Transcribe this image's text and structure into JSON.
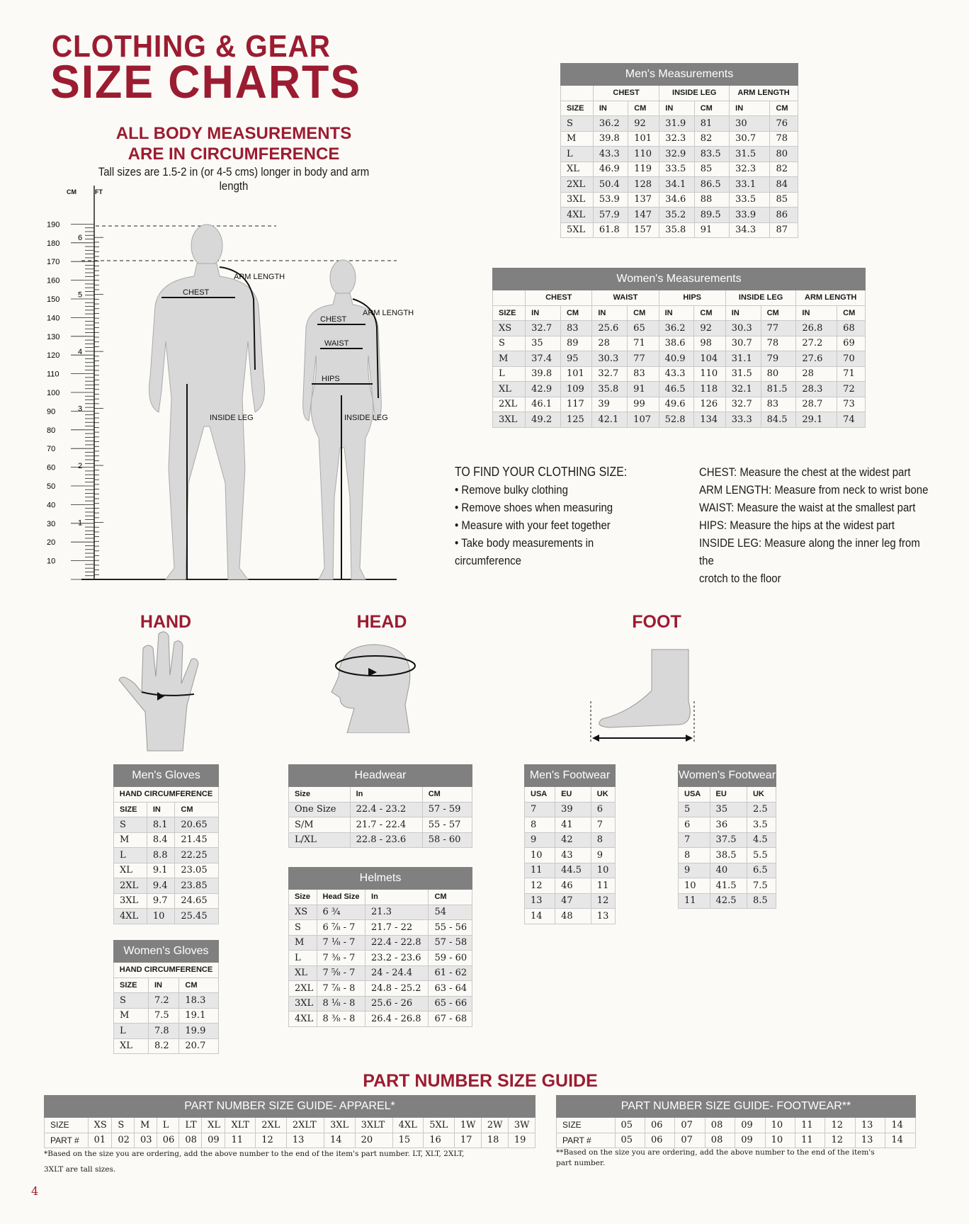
{
  "header": {
    "line1": "CLOTHING & GEAR",
    "line2": "SIZE CHARTS",
    "sub1": "ALL BODY MEASUREMENTS",
    "sub2": "ARE IN CIRCUMFERENCE",
    "tall_note": "Tall sizes are 1.5-2 in (or 4-5 cms) longer in body and arm  length"
  },
  "colors": {
    "brand_red": "#9b1c31",
    "header_gray": "#808080",
    "shade": "#e7e7e7"
  },
  "figure": {
    "cm_unit": "CM",
    "ft_unit": "FT",
    "cm_labels": [
      "10",
      "20",
      "30",
      "40",
      "50",
      "60",
      "70",
      "80",
      "90",
      "100",
      "110",
      "120",
      "130",
      "140",
      "150",
      "160",
      "170",
      "180",
      "190"
    ],
    "ft_labels": [
      "1",
      "2",
      "3",
      "4",
      "5",
      "6"
    ],
    "men_labels": {
      "arm": "ARM LENGTH",
      "chest": "CHEST",
      "leg": "INSIDE LEG"
    },
    "women_labels": {
      "arm": "ARM LENGTH",
      "chest": "CHEST",
      "waist": "WAIST",
      "hips": "HIPS",
      "leg": "INSIDE LEG"
    }
  },
  "tables": {
    "mens": {
      "title": "Men's Measurements",
      "groups": [
        {
          "label": "",
          "span": 1
        },
        {
          "label": "CHEST",
          "span": 2
        },
        {
          "label": "INSIDE LEG",
          "span": 2
        },
        {
          "label": "ARM LENGTH",
          "span": 2
        }
      ],
      "columns": [
        "SIZE",
        "IN",
        "CM",
        "IN",
        "CM",
        "IN",
        "CM"
      ],
      "rows": [
        [
          "S",
          "36.2",
          "92",
          "31.9",
          "81",
          "30",
          "76"
        ],
        [
          "M",
          "39.8",
          "101",
          "32.3",
          "82",
          "30.7",
          "78"
        ],
        [
          "L",
          "43.3",
          "110",
          "32.9",
          "83.5",
          "31.5",
          "80"
        ],
        [
          "XL",
          "46.9",
          "119",
          "33.5",
          "85",
          "32.3",
          "82"
        ],
        [
          "2XL",
          "50.4",
          "128",
          "34.1",
          "86.5",
          "33.1",
          "84"
        ],
        [
          "3XL",
          "53.9",
          "137",
          "34.6",
          "88",
          "33.5",
          "85"
        ],
        [
          "4XL",
          "57.9",
          "147",
          "35.2",
          "89.5",
          "33.9",
          "86"
        ],
        [
          "5XL",
          "61.8",
          "157",
          "35.8",
          "91",
          "34.3",
          "87"
        ]
      ]
    },
    "womens": {
      "title": "Women's Measurements",
      "groups": [
        {
          "label": "",
          "span": 1
        },
        {
          "label": "CHEST",
          "span": 2
        },
        {
          "label": "WAIST",
          "span": 2
        },
        {
          "label": "HIPS",
          "span": 2
        },
        {
          "label": "INSIDE LEG",
          "span": 2
        },
        {
          "label": "ARM LENGTH",
          "span": 2
        }
      ],
      "columns": [
        "SIZE",
        "IN",
        "CM",
        "IN",
        "CM",
        "IN",
        "CM",
        "IN",
        "CM",
        "IN",
        "CM"
      ],
      "rows": [
        [
          "XS",
          "32.7",
          "83",
          "25.6",
          "65",
          "36.2",
          "92",
          "30.3",
          "77",
          "26.8",
          "68"
        ],
        [
          "S",
          "35",
          "89",
          "28",
          "71",
          "38.6",
          "98",
          "30.7",
          "78",
          "27.2",
          "69"
        ],
        [
          "M",
          "37.4",
          "95",
          "30.3",
          "77",
          "40.9",
          "104",
          "31.1",
          "79",
          "27.6",
          "70"
        ],
        [
          "L",
          "39.8",
          "101",
          "32.7",
          "83",
          "43.3",
          "110",
          "31.5",
          "80",
          "28",
          "71"
        ],
        [
          "XL",
          "42.9",
          "109",
          "35.8",
          "91",
          "46.5",
          "118",
          "32.1",
          "81.5",
          "28.3",
          "72"
        ],
        [
          "2XL",
          "46.1",
          "117",
          "39",
          "99",
          "49.6",
          "126",
          "32.7",
          "83",
          "28.7",
          "73"
        ],
        [
          "3XL",
          "49.2",
          "125",
          "42.1",
          "107",
          "52.8",
          "134",
          "33.3",
          "84.5",
          "29.1",
          "74"
        ]
      ]
    },
    "mens_gloves": {
      "title": "Men's Gloves",
      "groups": [
        {
          "label": "HAND CIRCUMFERENCE",
          "span": 3
        }
      ],
      "columns": [
        "SIZE",
        "IN",
        "CM"
      ],
      "rows": [
        [
          "S",
          "8.1",
          "20.65"
        ],
        [
          "M",
          "8.4",
          "21.45"
        ],
        [
          "L",
          "8.8",
          "22.25"
        ],
        [
          "XL",
          "9.1",
          "23.05"
        ],
        [
          "2XL",
          "9.4",
          "23.85"
        ],
        [
          "3XL",
          "9.7",
          "24.65"
        ],
        [
          "4XL",
          "10",
          "25.45"
        ]
      ]
    },
    "womens_gloves": {
      "title": "Women's Gloves",
      "groups": [
        {
          "label": "HAND CIRCUMFERENCE",
          "span": 3
        }
      ],
      "columns": [
        "SIZE",
        "IN",
        "CM"
      ],
      "rows": [
        [
          "S",
          "7.2",
          "18.3"
        ],
        [
          "M",
          "7.5",
          "19.1"
        ],
        [
          "L",
          "7.8",
          "19.9"
        ],
        [
          "XL",
          "8.2",
          "20.7"
        ]
      ]
    },
    "headwear": {
      "title": "Headwear",
      "columns": [
        "Size",
        "In",
        "CM"
      ],
      "rows": [
        [
          "One Size",
          "22.4 - 23.2",
          "57 - 59"
        ],
        [
          "S/M",
          "21.7 - 22.4",
          "55 - 57"
        ],
        [
          "L/XL",
          "22.8 - 23.6",
          "58 - 60"
        ]
      ]
    },
    "helmets": {
      "title": "Helmets",
      "columns": [
        "Size",
        "Head Size",
        "In",
        "CM"
      ],
      "rows": [
        [
          "XS",
          "6 ¾",
          "21.3",
          "54"
        ],
        [
          "S",
          "6 ⅞ - 7",
          "21.7 - 22",
          "55 - 56"
        ],
        [
          "M",
          "7 ⅛ - 7",
          "22.4 - 22.8",
          "57 - 58"
        ],
        [
          "L",
          "7 ⅜ - 7",
          "23.2 - 23.6",
          "59 - 60"
        ],
        [
          "XL",
          "7 ⅝ - 7",
          "24 - 24.4",
          "61 - 62"
        ],
        [
          "2XL",
          "7 ⅞ - 8",
          "24.8 - 25.2",
          "63 - 64"
        ],
        [
          "3XL",
          "8 ⅛ - 8",
          "25.6 - 26",
          "65 - 66"
        ],
        [
          "4XL",
          "8 ⅜ - 8",
          "26.4 - 26.8",
          "67 - 68"
        ]
      ]
    },
    "mens_footwear": {
      "title": "Men's Footwear",
      "columns": [
        "USA",
        "EU",
        "UK"
      ],
      "rows": [
        [
          "7",
          "39",
          "6"
        ],
        [
          "8",
          "41",
          "7"
        ],
        [
          "9",
          "42",
          "8"
        ],
        [
          "10",
          "43",
          "9"
        ],
        [
          "11",
          "44.5",
          "10"
        ],
        [
          "12",
          "46",
          "11"
        ],
        [
          "13",
          "47",
          "12"
        ],
        [
          "14",
          "48",
          "13"
        ]
      ]
    },
    "womens_footwear": {
      "title": "Women's Footwear",
      "columns": [
        "USA",
        "EU",
        "UK"
      ],
      "rows": [
        [
          "5",
          "35",
          "2.5"
        ],
        [
          "6",
          "36",
          "3.5"
        ],
        [
          "7",
          "37.5",
          "4.5"
        ],
        [
          "8",
          "38.5",
          "5.5"
        ],
        [
          "9",
          "40",
          "6.5"
        ],
        [
          "10",
          "41.5",
          "7.5"
        ],
        [
          "11",
          "42.5",
          "8.5"
        ]
      ]
    },
    "part_apparel": {
      "title": "PART NUMBER SIZE GUIDE- APPAREL*",
      "columns": [],
      "rows": [
        [
          "SIZE",
          "XS",
          "S",
          "M",
          "L",
          "LT",
          "XL",
          "XLT",
          "2XL",
          "2XLT",
          "3XL",
          "3XLT",
          "4XL",
          "5XL",
          "1W",
          "2W",
          "3W"
        ],
        [
          "PART #",
          "01",
          "02",
          "03",
          "06",
          "08",
          "09",
          "11",
          "12",
          "13",
          "14",
          "20",
          "15",
          "16",
          "17",
          "18",
          "19"
        ]
      ]
    },
    "part_footwear": {
      "title": "PART NUMBER SIZE GUIDE- FOOTWEAR**",
      "columns": [],
      "rows": [
        [
          "SIZE",
          "05",
          "06",
          "07",
          "08",
          "09",
          "10",
          "11",
          "12",
          "13",
          "14"
        ],
        [
          "PART #",
          "05",
          "06",
          "07",
          "08",
          "09",
          "10",
          "11",
          "12",
          "13",
          "14"
        ]
      ]
    }
  },
  "instructions": {
    "title": "TO FIND YOUR CLOTHING SIZE:",
    "bullets": [
      "• Remove bulky clothing",
      "• Remove shoes when measuring",
      "• Measure with your feet together",
      "• Take body measurements in circumference"
    ],
    "definitions": [
      "CHEST: Measure the chest at the widest part",
      "ARM LENGTH: Measure from neck to wrist bone",
      "WAIST: Measure the waist at the smallest part",
      "HIPS: Measure the hips at the widest part",
      "INSIDE LEG: Measure along the inner leg from the",
      "crotch to the floor"
    ]
  },
  "sections": {
    "hand": "HAND",
    "head": "HEAD",
    "foot": "FOOT",
    "part_guide": "PART NUMBER SIZE GUIDE"
  },
  "notes": {
    "apparel1": "*Based on the size you are ordering, add the above number to the end of the item's part number. LT, XLT, 2XLT,",
    "apparel2": "3XLT are tall sizes.",
    "footwear1": "**Based on the size you are ordering, add the above number to the end of the item's",
    "footwear2": "part number."
  },
  "page_number": "4"
}
